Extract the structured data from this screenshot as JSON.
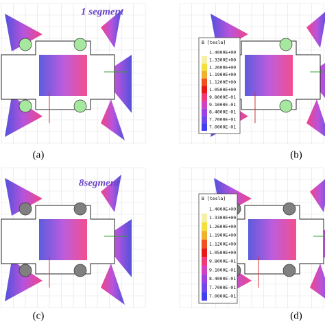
{
  "panels": [
    {
      "label": "(a)",
      "annotation": "1 segment"
    },
    {
      "label": "(b)",
      "legend": {
        "title": "B [tesla]",
        "entries": [
          "1.4000E+00",
          "1.3300E+00",
          "1.2600E+00",
          "1.1900E+00",
          "1.1200E+00",
          "1.0500E+00",
          "9.8000E-01",
          "9.1000E-01",
          "8.4000E-01",
          "7.7000E-01",
          "7.0000E-01"
        ]
      }
    },
    {
      "label": "(c)",
      "annotation": "8segment"
    },
    {
      "label": "(d)",
      "legend": {
        "title": "B [tesla]",
        "entries": [
          "1.4000E+00",
          "1.3300E+00",
          "1.2600E+00",
          "1.1900E+00",
          "1.1200E+00",
          "1.0500E+00",
          "9.8000E-01",
          "9.1000E-01",
          "8.4000E-01",
          "7.7000E-01",
          "7.0000E-01"
        ]
      }
    }
  ]
}
